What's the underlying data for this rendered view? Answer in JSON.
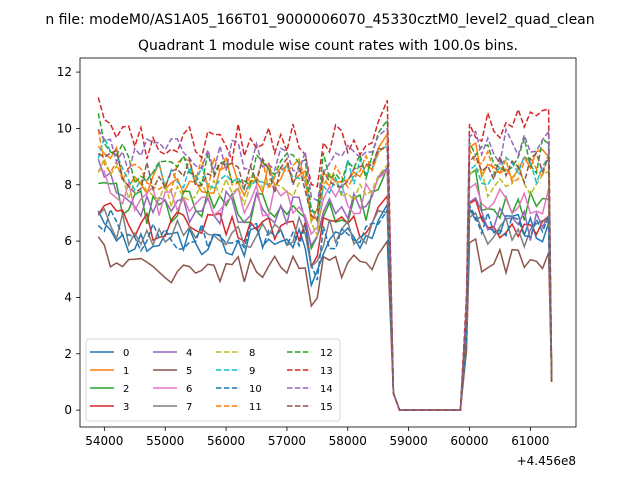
{
  "figure": {
    "suptitle": "n file: modeM0/AS1A05_166T01_9000006070_45330cztM0_level2_quad_clean"
  },
  "chart_data": {
    "type": "line",
    "title": "Quadrant 1 module wise count rates with 100.0s bins.",
    "xlabel": "",
    "ylabel": "",
    "x_offset_label": "+4.456e8",
    "xlim": [
      53600,
      61750
    ],
    "ylim": [
      -0.6,
      12.5
    ],
    "x_ticks": [
      54000,
      55000,
      56000,
      57000,
      58000,
      59000,
      60000,
      61000
    ],
    "x_tick_labels": [
      "54000",
      "55000",
      "56000",
      "57000",
      "58000",
      "59000",
      "60000",
      "61000"
    ],
    "y_ticks": [
      0,
      2,
      4,
      6,
      8,
      10,
      12
    ],
    "y_tick_labels": [
      "0",
      "2",
      "4",
      "6",
      "8",
      "10",
      "12"
    ],
    "grid": false,
    "legend_position": "lower-left",
    "legend_columns": 4,
    "series": [
      {
        "name": "0",
        "color": "#1f77b4",
        "dash": "solid",
        "seg1": 6.0,
        "seg2": 6.4,
        "jump1": 7.3,
        "jump2": 7.0
      },
      {
        "name": "1",
        "color": "#ff7f0e",
        "dash": "solid",
        "seg1": 8.2,
        "seg2": 8.7,
        "jump1": 9.8,
        "jump2": 9.2
      },
      {
        "name": "2",
        "color": "#2ca02c",
        "dash": "solid",
        "seg1": 7.2,
        "seg2": 7.2,
        "jump1": 8.6,
        "jump2": 8.3
      },
      {
        "name": "3",
        "color": "#d62728",
        "dash": "solid",
        "seg1": 6.5,
        "seg2": 6.6,
        "jump1": 7.6,
        "jump2": 7.3
      },
      {
        "name": "4",
        "color": "#9467bd",
        "dash": "solid",
        "seg1": 7.2,
        "seg2": 6.6,
        "jump1": 8.6,
        "jump2": 7.4
      },
      {
        "name": "5",
        "color": "#8c564b",
        "dash": "solid",
        "seg1": 5.0,
        "seg2": 5.3,
        "jump1": 6.0,
        "jump2": 6.0
      },
      {
        "name": "6",
        "color": "#e377c2",
        "dash": "solid",
        "seg1": 7.5,
        "seg2": 7.5,
        "jump1": 8.5,
        "jump2": 8.0
      },
      {
        "name": "7",
        "color": "#7f7f7f",
        "dash": "solid",
        "seg1": 6.3,
        "seg2": 6.3,
        "jump1": 7.0,
        "jump2": 7.0
      },
      {
        "name": "8",
        "color": "#bcbd22",
        "dash": "dashed",
        "seg1": 7.8,
        "seg2": 8.1,
        "jump1": 8.7,
        "jump2": 8.6
      },
      {
        "name": "9",
        "color": "#17becf",
        "dash": "dashed",
        "seg1": 8.3,
        "seg2": 8.6,
        "jump1": 9.4,
        "jump2": 8.8
      },
      {
        "name": "10",
        "color": "#1f77b4",
        "dash": "dashed",
        "seg1": 6.2,
        "seg2": 6.5,
        "jump1": 7.1,
        "jump2": 7.0
      },
      {
        "name": "11",
        "color": "#ff7f0e",
        "dash": "dashed",
        "seg1": 8.4,
        "seg2": 8.7,
        "jump1": 9.5,
        "jump2": 9.0
      },
      {
        "name": "12",
        "color": "#2ca02c",
        "dash": "dashed",
        "seg1": 8.6,
        "seg2": 9.0,
        "jump1": 10.3,
        "jump2": 9.3
      },
      {
        "name": "13",
        "color": "#d62728",
        "dash": "dashed",
        "seg1": 9.5,
        "seg2": 10.2,
        "jump1": 11.0,
        "jump2": 10.0
      },
      {
        "name": "14",
        "color": "#9467bd",
        "dash": "dashed",
        "seg1": 9.0,
        "seg2": 9.4,
        "jump1": 10.0,
        "jump2": 9.6
      },
      {
        "name": "15",
        "color": "#8c564b",
        "dash": "dashed",
        "seg1": 8.3,
        "seg2": 8.5,
        "jump1": 9.3,
        "jump2": 8.8
      }
    ],
    "segments": {
      "active1": [
        53900,
        58650
      ],
      "dip": 57450,
      "gap": [
        58850,
        59850
      ],
      "active2": [
        60000,
        61300
      ],
      "end": 61350
    }
  }
}
